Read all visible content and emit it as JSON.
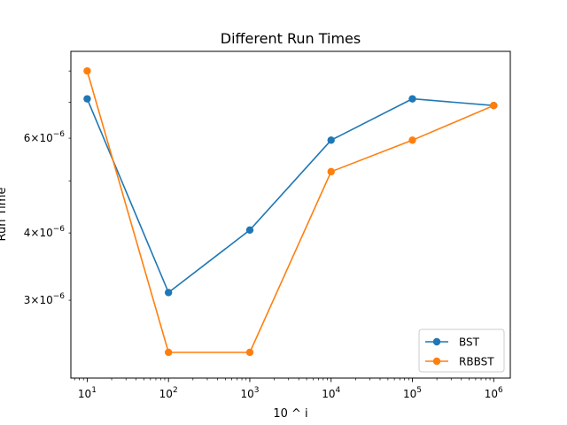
{
  "chart_data": {
    "type": "line",
    "title": "Different Run Times",
    "xlabel": "10 ^ i",
    "ylabel": "Run Time",
    "xscale": "log",
    "yscale": "log",
    "xlim": [
      6.3,
      1600000
    ],
    "ylim": [
      2.15e-06,
      8.7e-06
    ],
    "x": [
      10,
      100,
      1000,
      10000,
      100000,
      1000000
    ],
    "x_tick_labels": [
      {
        "value": 10,
        "base": "10",
        "exp": "1"
      },
      {
        "value": 100,
        "base": "10",
        "exp": "2"
      },
      {
        "value": 1000,
        "base": "10",
        "exp": "3"
      },
      {
        "value": 10000,
        "base": "10",
        "exp": "4"
      },
      {
        "value": 100000,
        "base": "10",
        "exp": "5"
      },
      {
        "value": 1000000,
        "base": "10",
        "exp": "6"
      }
    ],
    "y_tick_labels": [
      {
        "value": 3e-06,
        "mant": "3",
        "base": "10",
        "exp": "−6"
      },
      {
        "value": 4e-06,
        "mant": "4",
        "base": "10",
        "exp": "−6"
      },
      {
        "value": 6e-06,
        "mant": "6",
        "base": "10",
        "exp": "−6"
      }
    ],
    "y_minor_ticks": [
      3e-06,
      4e-06,
      5e-06,
      6e-06,
      7e-06,
      8e-06
    ],
    "series": [
      {
        "name": "BST",
        "color": "#1f77b4",
        "values": [
          7.1e-06,
          3.1e-06,
          4.05e-06,
          5.95e-06,
          7.1e-06,
          6.9e-06
        ]
      },
      {
        "name": "RBBST",
        "color": "#ff7f0e",
        "values": [
          8e-06,
          2.4e-06,
          2.4e-06,
          5.2e-06,
          5.95e-06,
          6.9e-06
        ]
      }
    ],
    "legend": {
      "position": "lower-right"
    },
    "grid": false
  }
}
